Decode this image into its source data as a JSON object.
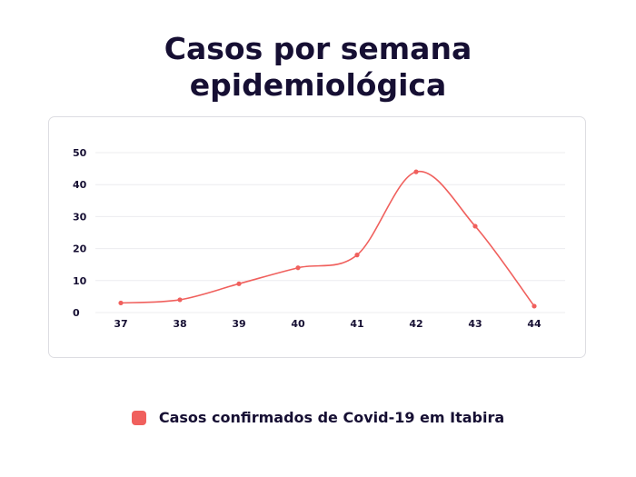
{
  "chart_data": {
    "type": "line",
    "title": [
      "Casos por semana",
      "epidemiológica"
    ],
    "xlabel": "",
    "ylabel": "",
    "categories": [
      "37",
      "38",
      "39",
      "40",
      "41",
      "42",
      "43",
      "44"
    ],
    "series": [
      {
        "name": "Casos confirmados de Covid-19 em Itabira",
        "values": [
          3,
          4,
          9,
          14,
          18,
          44,
          27,
          2
        ],
        "color": "#f0605d"
      }
    ],
    "yticks": [
      "0",
      "10",
      "20",
      "30",
      "40",
      "50"
    ],
    "ylim": [
      0,
      50
    ],
    "grid": true,
    "legend_position": "bottom-center",
    "colors": {
      "title": "#160f33",
      "grid": "#ececef",
      "line": "#f0605d"
    }
  }
}
